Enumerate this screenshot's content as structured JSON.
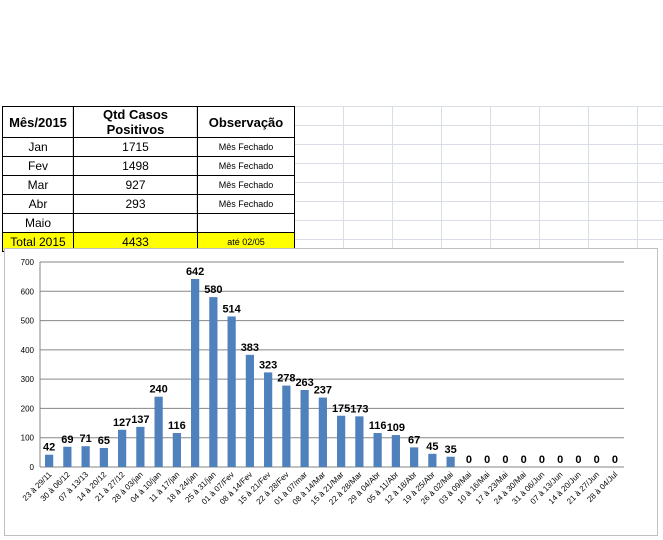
{
  "table": {
    "headers": [
      "Mês/2015",
      "Qtd Casos Positivos",
      "Observação"
    ],
    "rows": [
      {
        "month": "Jan",
        "qty": "1715",
        "obs": "Mês Fechado"
      },
      {
        "month": "Fev",
        "qty": "1498",
        "obs": "Mês Fechado"
      },
      {
        "month": "Mar",
        "qty": "927",
        "obs": "Mês Fechado"
      },
      {
        "month": "Abr",
        "qty": "293",
        "obs": "Mês Fechado"
      },
      {
        "month": "Maio",
        "qty": "",
        "obs": ""
      }
    ],
    "total": {
      "month": "Total 2015",
      "qty": "4433",
      "obs": "até 02/05"
    }
  },
  "chart_data": {
    "type": "bar",
    "title": "",
    "xlabel": "",
    "ylabel": "",
    "ylim": [
      0,
      700
    ],
    "yticks": [
      0,
      100,
      200,
      300,
      400,
      500,
      600,
      700
    ],
    "grid": true,
    "legend": "none",
    "bar_color": "#4f81bd",
    "categories": [
      "23 à 29/11",
      "30 à 06/12",
      "07 à 13/13",
      "14 à 20/12",
      "21 à 27/12",
      "28 à 03/jan",
      "04 à 10/jan",
      "11 à 17/jan",
      "18 à 24/jan",
      "25 à 31/jan",
      "01 à 07/Fev",
      "08 à 14/Fev",
      "15 à 21/Fev",
      "22 à 28/Fev",
      "01 à 07/mar",
      "08 à 14/Mar",
      "15 à 21/Mar",
      "22 à 28/Mar",
      "29 à 04/Abr",
      "05 à 11/Abr",
      "12 à 18/Abr",
      "19 à 25/Abr",
      "26 à 02/Mai",
      "03 à 09/Mai",
      "10 à 16/Mai",
      "17 à 23/Mai",
      "24 à 30/Mai",
      "31 à 06/Jun",
      "07 à 13/Jun",
      "14 à 20/Jun",
      "21 à 27/Jun",
      "28 à 04/Jul"
    ],
    "values": [
      42,
      69,
      71,
      65,
      127,
      137,
      240,
      116,
      642,
      580,
      514,
      383,
      323,
      278,
      263,
      237,
      175,
      173,
      116,
      109,
      67,
      45,
      35,
      0,
      0,
      0,
      0,
      0,
      0,
      0,
      0,
      0
    ]
  }
}
